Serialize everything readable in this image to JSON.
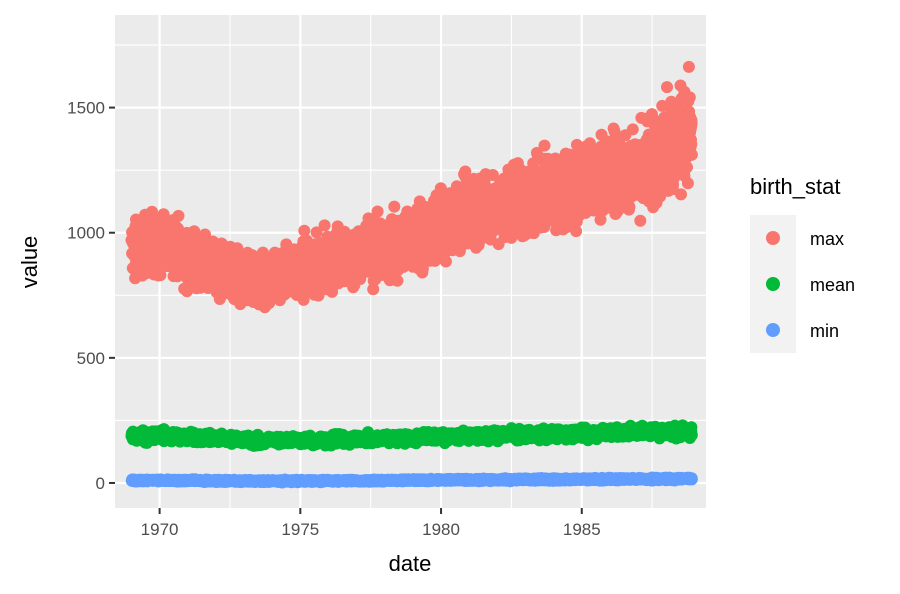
{
  "chart_data": {
    "type": "scatter",
    "xlabel": "date",
    "ylabel": "value",
    "x_ticks": [
      1970,
      1975,
      1980,
      1985
    ],
    "y_ticks": [
      0,
      500,
      1000,
      1500
    ],
    "xlim": [
      "1968-06-01",
      "1989-06-01"
    ],
    "ylim": [
      -100,
      1870
    ],
    "grid": true,
    "legend": {
      "title": "birth_stat",
      "position": "right"
    },
    "series": [
      {
        "name": "max",
        "color": "#F8766D",
        "x": [
          "1969-01-01",
          "1969-07-01",
          "1970-01-01",
          "1970-07-01",
          "1971-01-01",
          "1971-07-01",
          "1972-01-01",
          "1972-07-01",
          "1973-01-01",
          "1973-07-01",
          "1974-01-01",
          "1974-07-01",
          "1975-01-01",
          "1975-07-01",
          "1976-01-01",
          "1976-07-01",
          "1977-01-01",
          "1977-07-01",
          "1978-01-01",
          "1978-07-01",
          "1979-01-01",
          "1979-07-01",
          "1980-01-01",
          "1980-07-01",
          "1981-01-01",
          "1981-07-01",
          "1982-01-01",
          "1982-07-01",
          "1983-01-01",
          "1983-07-01",
          "1984-01-01",
          "1984-07-01",
          "1985-01-01",
          "1985-07-01",
          "1986-01-01",
          "1986-07-01",
          "1987-01-01",
          "1987-07-01",
          "1988-01-01",
          "1988-07-01",
          "1988-12-01"
        ],
        "y": [
          930,
          950,
          960,
          940,
          900,
          880,
          840,
          830,
          820,
          810,
          820,
          840,
          860,
          870,
          890,
          900,
          910,
          920,
          930,
          950,
          980,
          1000,
          1040,
          1050,
          1070,
          1090,
          1100,
          1110,
          1130,
          1140,
          1160,
          1180,
          1200,
          1210,
          1230,
          1240,
          1260,
          1290,
          1330,
          1370,
          1400
        ],
        "spread": [
          140,
          150,
          160,
          150,
          150,
          140,
          140,
          130,
          130,
          130,
          140,
          140,
          140,
          140,
          150,
          150,
          150,
          160,
          160,
          160,
          170,
          170,
          170,
          170,
          180,
          180,
          180,
          180,
          180,
          190,
          190,
          190,
          200,
          200,
          210,
          210,
          220,
          230,
          240,
          250,
          250
        ]
      },
      {
        "name": "mean",
        "color": "#00BA38",
        "x": [
          "1969-01-01",
          "1970-01-01",
          "1971-01-01",
          "1972-01-01",
          "1973-01-01",
          "1974-01-01",
          "1975-01-01",
          "1976-01-01",
          "1977-01-01",
          "1978-01-01",
          "1979-01-01",
          "1980-01-01",
          "1981-01-01",
          "1982-01-01",
          "1983-01-01",
          "1984-01-01",
          "1985-01-01",
          "1986-01-01",
          "1987-01-01",
          "1988-01-01",
          "1988-12-01"
        ],
        "y": [
          185,
          190,
          185,
          178,
          172,
          170,
          170,
          172,
          175,
          178,
          182,
          185,
          188,
          190,
          192,
          195,
          198,
          200,
          203,
          205,
          207
        ],
        "spread": [
          30,
          32,
          30,
          28,
          26,
          26,
          26,
          26,
          27,
          27,
          28,
          28,
          29,
          29,
          30,
          30,
          31,
          31,
          32,
          32,
          32
        ]
      },
      {
        "name": "min",
        "color": "#619CFF",
        "x": [
          "1969-01-01",
          "1970-01-01",
          "1971-01-01",
          "1972-01-01",
          "1973-01-01",
          "1974-01-01",
          "1975-01-01",
          "1976-01-01",
          "1977-01-01",
          "1978-01-01",
          "1979-01-01",
          "1980-01-01",
          "1981-01-01",
          "1982-01-01",
          "1983-01-01",
          "1984-01-01",
          "1985-01-01",
          "1986-01-01",
          "1987-01-01",
          "1988-01-01",
          "1988-12-01"
        ],
        "y": [
          10,
          10,
          10,
          9,
          8,
          8,
          8,
          9,
          9,
          10,
          11,
          12,
          13,
          13,
          14,
          14,
          15,
          15,
          16,
          16,
          16
        ],
        "spread": [
          6,
          6,
          6,
          6,
          6,
          6,
          6,
          6,
          6,
          6,
          6,
          7,
          7,
          7,
          7,
          7,
          7,
          7,
          7,
          7,
          7
        ]
      }
    ]
  }
}
